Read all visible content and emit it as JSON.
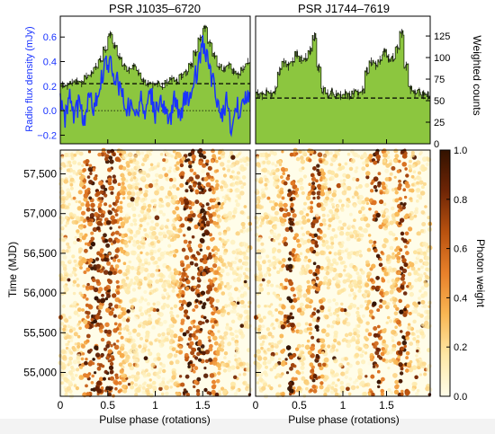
{
  "chart_data": [
    {
      "type": "area",
      "panel": "top-left",
      "title": "PSR J1035–6720",
      "ylabel": "Radio flux density (mJy)",
      "ylim": [
        -0.27,
        0.77
      ],
      "yticks": [
        "−0.2",
        "0.0",
        "0.2",
        "0.4",
        "0.6"
      ],
      "xlim": [
        0,
        2
      ],
      "series": [
        {
          "kind": "gamma-ray weighted counts (histogram)",
          "color": "#8cc63f",
          "x": [
            0.0,
            0.05,
            0.1,
            0.15,
            0.2,
            0.25,
            0.3,
            0.35,
            0.4,
            0.45,
            0.5,
            0.55,
            0.6,
            0.65,
            0.7,
            0.75,
            0.8,
            0.85,
            0.9,
            0.95,
            1.0,
            1.05,
            1.1,
            1.15,
            1.2,
            1.25,
            1.3,
            1.35,
            1.4,
            1.45,
            1.5,
            1.55,
            1.6,
            1.65,
            1.7,
            1.75,
            1.8,
            1.85,
            1.9,
            1.95
          ],
          "y_mjy": [
            0.21,
            0.2,
            0.23,
            0.24,
            0.22,
            0.28,
            0.3,
            0.36,
            0.42,
            0.5,
            0.62,
            0.53,
            0.44,
            0.36,
            0.33,
            0.36,
            0.31,
            0.24,
            0.22,
            0.21,
            0.22,
            0.2,
            0.23,
            0.26,
            0.24,
            0.28,
            0.31,
            0.37,
            0.47,
            0.59,
            0.67,
            0.55,
            0.45,
            0.36,
            0.34,
            0.37,
            0.32,
            0.29,
            0.34,
            0.4
          ]
        },
        {
          "kind": "radio profile",
          "color": "#1a33ff",
          "x": [
            0.0,
            0.05,
            0.1,
            0.15,
            0.2,
            0.25,
            0.3,
            0.35,
            0.4,
            0.45,
            0.5,
            0.55,
            0.6,
            0.65,
            0.7,
            0.75,
            0.8,
            0.85,
            0.9,
            0.95,
            1.0,
            1.05,
            1.1,
            1.15,
            1.2,
            1.25,
            1.3,
            1.35,
            1.4,
            1.45,
            1.5,
            1.55,
            1.6,
            1.65,
            1.7,
            1.75,
            1.8,
            1.85,
            1.9,
            1.95
          ],
          "y": [
            0.08,
            -0.08,
            0.12,
            -0.06,
            0.06,
            -0.1,
            0.14,
            0.02,
            0.18,
            0.3,
            0.4,
            0.33,
            0.24,
            0.12,
            0.0,
            0.08,
            -0.04,
            0.1,
            -0.08,
            0.16,
            -0.02,
            0.1,
            0.04,
            -0.12,
            0.12,
            -0.04,
            0.06,
            0.1,
            0.2,
            0.36,
            0.54,
            0.4,
            0.26,
            0.08,
            -0.06,
            0.1,
            -0.16,
            0.04,
            0.0,
            0.12
          ]
        }
      ],
      "background_line_y": 0.22,
      "zero_line_y": 0.0
    },
    {
      "type": "area",
      "panel": "top-right",
      "title": "PSR J1744–7619",
      "ylabel": "Weighted counts",
      "ylim": [
        0,
        148
      ],
      "yticks": [
        "0",
        "25",
        "50",
        "75",
        "100",
        "125"
      ],
      "xlim": [
        0,
        2
      ],
      "series": [
        {
          "kind": "gamma-ray weighted counts (histogram)",
          "color": "#8cc63f",
          "x": [
            0.0,
            0.05,
            0.1,
            0.15,
            0.2,
            0.25,
            0.3,
            0.35,
            0.4,
            0.45,
            0.5,
            0.55,
            0.6,
            0.65,
            0.7,
            0.75,
            0.8,
            0.85,
            0.9,
            0.95,
            1.0,
            1.05,
            1.1,
            1.15,
            1.2,
            1.25,
            1.3,
            1.35,
            1.4,
            1.45,
            1.5,
            1.55,
            1.6,
            1.65,
            1.7,
            1.75,
            1.8,
            1.85,
            1.9,
            1.95
          ],
          "y": [
            58,
            56,
            60,
            57,
            62,
            84,
            94,
            90,
            95,
            104,
            98,
            100,
            108,
            124,
            88,
            62,
            58,
            60,
            57,
            56,
            58,
            56,
            59,
            58,
            62,
            84,
            95,
            91,
            97,
            106,
            99,
            100,
            110,
            128,
            90,
            63,
            58,
            60,
            57,
            56
          ]
        }
      ],
      "background_line_y": 53
    },
    {
      "type": "heatmap",
      "panel": "bottom-left",
      "xlabel": "Pulse phase (rotations)",
      "ylabel": "Time (MJD)",
      "xlim": [
        0,
        2
      ],
      "ylim": [
        54700,
        57800
      ],
      "xticks": [
        "0",
        "0.5",
        "1",
        "1.5"
      ],
      "yticks": [
        "55,000",
        "55,500",
        "56,000",
        "56,500",
        "57,000",
        "57,500"
      ],
      "pulse_peaks": [
        0.35,
        0.5
      ],
      "peak_widths": [
        0.07,
        0.09
      ]
    },
    {
      "type": "heatmap",
      "panel": "bottom-right",
      "xlabel": "Pulse phase (rotations)",
      "xlim": [
        0,
        2
      ],
      "ylim": [
        54700,
        57800
      ],
      "xticks": [
        "0",
        "0.5",
        "1",
        "1.5"
      ],
      "pulse_peaks": [
        0.39,
        0.69
      ],
      "peak_widths": [
        0.05,
        0.045
      ]
    },
    {
      "type": "colorbar",
      "label": "Photon weight",
      "range": [
        0,
        1
      ],
      "ticks": [
        "0.0",
        "0.2",
        "0.4",
        "0.6",
        "0.8",
        "1.0"
      ],
      "colormap": [
        "#fffde9",
        "#fde8a6",
        "#f9b653",
        "#e8802a",
        "#b9520f",
        "#6e2506",
        "#331200"
      ]
    }
  ]
}
